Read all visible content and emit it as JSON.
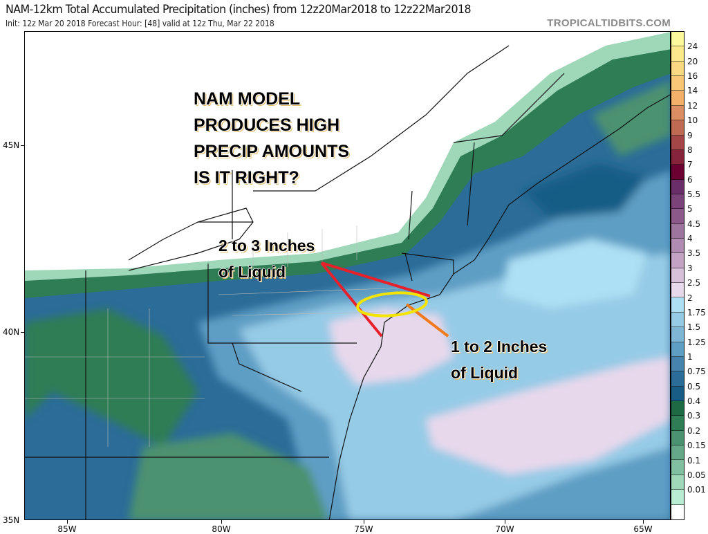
{
  "header": {
    "title": "NAM-12km Total Accumulated Precipitation (inches) from 12z20Mar2018 to 12z22Mar2018",
    "subtitle": "Init: 12z Mar 20 2018   Forecast Hour: [48]   valid at 12z Thu, Mar 22 2018",
    "brand": "TROPICALTIDBITS.COM"
  },
  "axes": {
    "lat_labels": [
      "45N",
      "40N",
      "35N"
    ],
    "lon_labels": [
      "85W",
      "80W",
      "75W",
      "70W",
      "65W"
    ]
  },
  "colorbar": {
    "labels": [
      "24",
      "20",
      "16",
      "14",
      "12",
      "10",
      "9",
      "8",
      "7",
      "6",
      "5.5",
      "5",
      "4.5",
      "4",
      "3.5",
      "3",
      "2.5",
      "2",
      "1.75",
      "1.5",
      "1.25",
      "1",
      "0.75",
      "0.5",
      "0.4",
      "0.3",
      "0.2",
      "0.15",
      "0.1",
      "0.05",
      "0.01"
    ],
    "colors": [
      "#fdf89c",
      "#fde88c",
      "#fbd882",
      "#f8c878",
      "#f2b06a",
      "#dc8d64",
      "#c06a54",
      "#a44548",
      "#86243c",
      "#6c0032",
      "#6a2f6a",
      "#7a447a",
      "#8b5a8b",
      "#9e759e",
      "#b08cb2",
      "#c4a2c6",
      "#d8bfda",
      "#e8d8ec",
      "#ade0f4",
      "#96cbe6",
      "#7fb6d6",
      "#5f9ec4",
      "#4684ae",
      "#2b6c98",
      "#175d86",
      "#1d6a45",
      "#2e7d55",
      "#4b9270",
      "#64a887",
      "#80c0a0",
      "#9ed8b9",
      "#b8ecd3",
      "#ffffff"
    ]
  },
  "annotations": {
    "question": [
      "NAM MODEL",
      "PRODUCES HIGH",
      "PRECIP AMOUNTS",
      "IS IT RIGHT?"
    ],
    "label_a": [
      "2 to 3 Inches",
      "of Liquid"
    ],
    "label_b": [
      "1 to 2 Inches",
      "of Liquid"
    ],
    "colors": {
      "arrow_a": "#e8202a",
      "arrow_b": "#f07a1e",
      "ellipse": "#f4e400"
    }
  }
}
